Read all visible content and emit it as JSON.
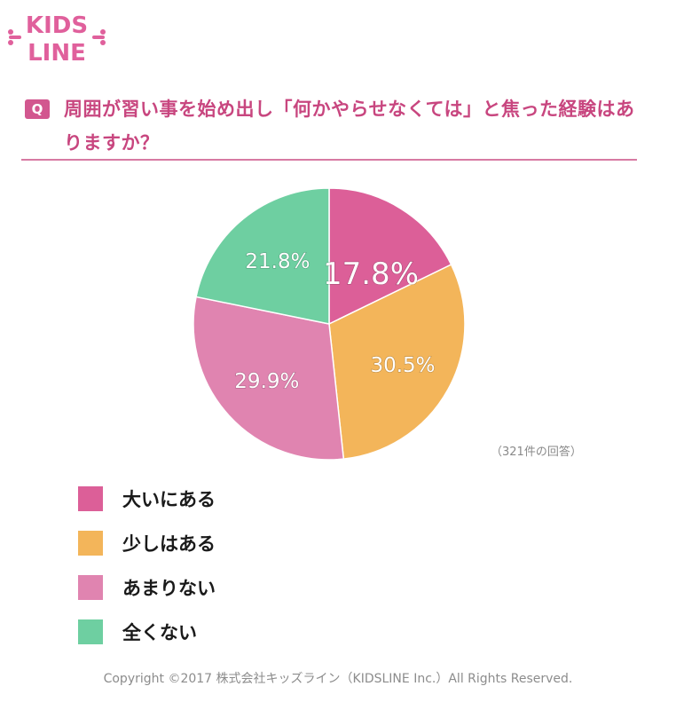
{
  "brand": {
    "logo_line1": "KIDS",
    "logo_line2": "LINE",
    "color": "#e0609c"
  },
  "question": {
    "badge": "Q",
    "text": "周囲が習い事を始め出し「何かやらせなくては」と焦った経験はありますか？"
  },
  "note": "（321件の回答）",
  "copyright": "Copyright ©2017 株式会社キッズライン（KIDSLINE Inc.）All Rights Reserved.",
  "chart_data": {
    "type": "pie",
    "title": "",
    "slices": [
      {
        "name": "大いにある",
        "value": 17.8,
        "label": "17.8%",
        "color": "#dc5f98"
      },
      {
        "name": "少しはある",
        "value": 30.5,
        "label": "30.5%",
        "color": "#f3b55a"
      },
      {
        "name": "あまりない",
        "value": 29.9,
        "label": "29.9%",
        "color": "#e084b0"
      },
      {
        "name": "全くない",
        "value": 21.8,
        "label": "21.8%",
        "color": "#6ecfa1"
      }
    ],
    "legend_position": "bottom-left"
  }
}
